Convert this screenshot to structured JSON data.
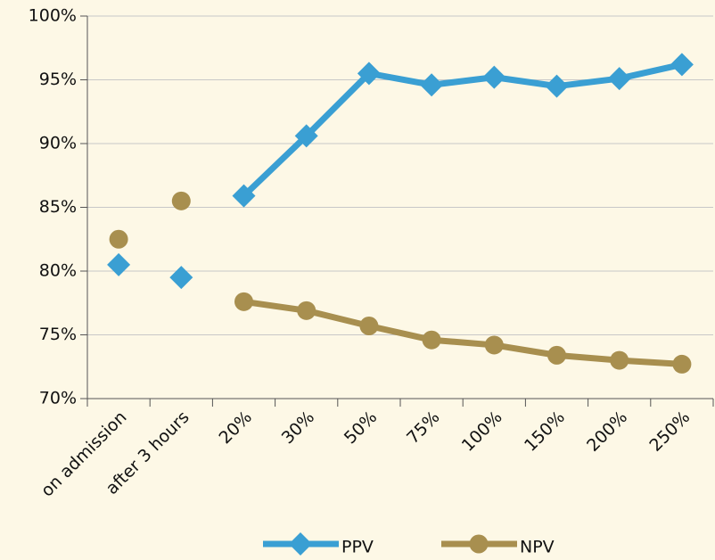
{
  "chart_data": {
    "type": "line",
    "categories": [
      "on admission",
      "after 3 hours",
      "20%",
      "30%",
      "50%",
      "75%",
      "100%",
      "150%",
      "200%",
      "250%"
    ],
    "series": [
      {
        "name": "PPV",
        "color": "#3a9fd3",
        "marker": "diamond",
        "values": [
          80.5,
          79.5,
          85.9,
          90.6,
          95.5,
          94.6,
          95.2,
          94.5,
          95.1,
          96.2
        ],
        "connected": [
          false,
          false,
          true,
          true,
          true,
          true,
          true,
          true,
          true,
          true
        ]
      },
      {
        "name": "NPV",
        "color": "#a88f4f",
        "marker": "circle",
        "values": [
          82.5,
          85.5,
          77.6,
          76.9,
          75.7,
          74.6,
          74.2,
          73.4,
          73.0,
          72.7
        ],
        "connected": [
          false,
          false,
          true,
          true,
          true,
          true,
          true,
          true,
          true,
          true
        ]
      }
    ],
    "ylim": [
      70,
      100
    ],
    "yticks": [
      {
        "value": 70,
        "label": "70%"
      },
      {
        "value": 75,
        "label": "75%"
      },
      {
        "value": 80,
        "label": "80%"
      },
      {
        "value": 85,
        "label": "85%"
      },
      {
        "value": 90,
        "label": "90%"
      },
      {
        "value": 95,
        "label": "95%"
      },
      {
        "value": 100,
        "label": "100%"
      }
    ],
    "grid": true,
    "legend": "bottom"
  }
}
